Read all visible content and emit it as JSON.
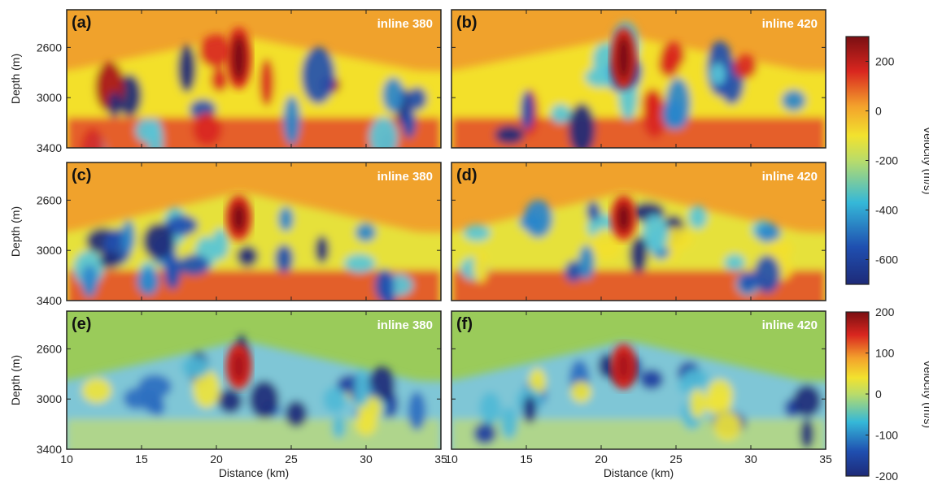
{
  "figure": {
    "y_axis_label": "Depth (m)",
    "x_axis_label": "Distance (km)"
  },
  "chart_data": [
    {
      "type": "heatmap",
      "panel_label": "(a)",
      "inline_label": "inline 380",
      "colorbar": "top"
    },
    {
      "type": "heatmap",
      "panel_label": "(b)",
      "inline_label": "inline 420",
      "colorbar": "top"
    },
    {
      "type": "heatmap",
      "panel_label": "(c)",
      "inline_label": "inline 380",
      "colorbar": "top"
    },
    {
      "type": "heatmap",
      "panel_label": "(d)",
      "inline_label": "inline 420",
      "colorbar": "top"
    },
    {
      "type": "heatmap",
      "panel_label": "(e)",
      "inline_label": "inline 380",
      "colorbar": "bottom"
    },
    {
      "type": "heatmap",
      "panel_label": "(f)",
      "inline_label": "inline 420",
      "colorbar": "bottom"
    }
  ],
  "axes": {
    "x_ticks": [
      10,
      15,
      20,
      25,
      30,
      35
    ],
    "x_range": [
      10,
      35
    ],
    "y_ticks": [
      2600,
      3000,
      3400
    ],
    "y_range": [
      2300,
      3400
    ],
    "y_inverted": true
  },
  "colorbars": [
    {
      "id": "top",
      "label": "Velocity (m/s)",
      "ticks": [
        200,
        0,
        -200,
        -400,
        -600
      ],
      "range": [
        -700,
        300
      ]
    },
    {
      "id": "bottom",
      "label": "Velocity (m/s)",
      "ticks": [
        200,
        100,
        0,
        -100,
        -200
      ],
      "range": [
        -200,
        200
      ]
    }
  ]
}
